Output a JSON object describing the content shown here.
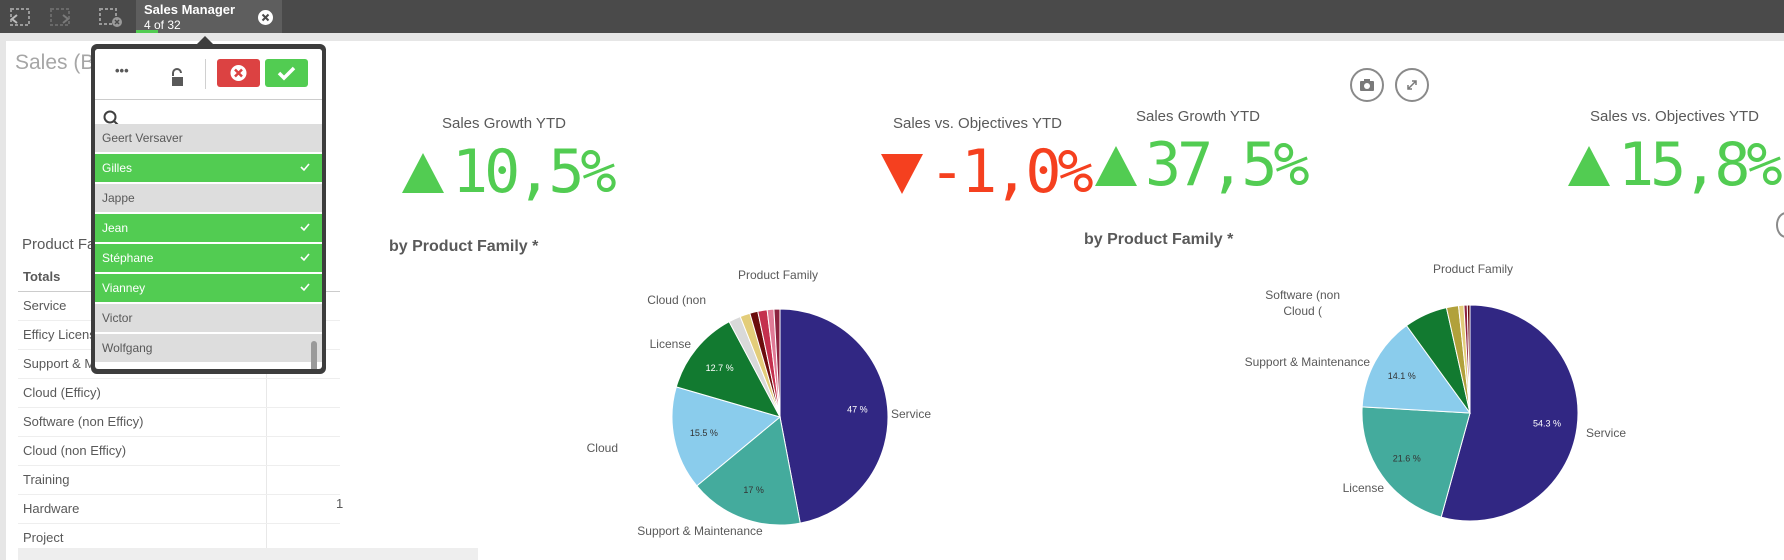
{
  "topbar": {
    "selection_tab": {
      "field": "Sales Manager",
      "count": "4 of 32"
    },
    "icons": [
      "step-back-icon",
      "step-forward-icon",
      "clear-selections-icon",
      "close-icon"
    ]
  },
  "sheet": {
    "title": "Sales (B"
  },
  "kpis": [
    {
      "title": "Sales Growth YTD",
      "value": "10,5%",
      "direction": "up",
      "color": "#52cc52"
    },
    {
      "title": "Sales vs. Objectives YTD",
      "value": "-1,0%",
      "direction": "down",
      "color": "#f5401f"
    },
    {
      "title": "Sales Growth YTD",
      "value": "37,5%",
      "direction": "up",
      "color": "#52cc52"
    },
    {
      "title": "Sales vs. Objectives YTD",
      "value": "15,8%",
      "direction": "up",
      "color": "#52cc52"
    }
  ],
  "subtitles": [
    "by Product Family *",
    "by Product Family *"
  ],
  "table": {
    "header": "Product Fa",
    "rows": [
      "Totals",
      "Service",
      "Efficy Licens",
      "Support & M",
      "Cloud (Efficy)",
      "Software (non Efficy)",
      "Cloud (non Efficy)",
      "Training",
      "Hardware",
      "Project"
    ],
    "hardware_value": "1"
  },
  "listbox": {
    "toolbar": {
      "more": "•••",
      "lock": "lock-icon",
      "cancel": "cancel-icon",
      "confirm": "check-icon"
    },
    "search_placeholder": "",
    "items": [
      {
        "label": "Geert Versaver",
        "state": "alt"
      },
      {
        "label": "Gilles",
        "state": "selected"
      },
      {
        "label": "Jappe",
        "state": "alt"
      },
      {
        "label": "Jean",
        "state": "selected"
      },
      {
        "label": "Stéphane",
        "state": "selected"
      },
      {
        "label": "Vianney",
        "state": "selected"
      },
      {
        "label": "Victor",
        "state": "alt"
      },
      {
        "label": "Wolfgang",
        "state": "alt"
      }
    ]
  },
  "chart_data": [
    {
      "type": "pie",
      "title": "Product Family",
      "slices": [
        {
          "label": "Service",
          "value": 47,
          "shown": "47 %",
          "color": "#312783"
        },
        {
          "label": "Support & Maintenance",
          "value": 17,
          "shown": "17 %",
          "color": "#44ab9d"
        },
        {
          "label": "Cloud",
          "value": 15.5,
          "shown": "15.5 %",
          "color": "#8accec"
        },
        {
          "label": "License",
          "value": 12.7,
          "shown": "12.7 %",
          "color": "#127a30"
        },
        {
          "label": "",
          "value": 1.8,
          "shown": "",
          "color": "#d9d9d9"
        },
        {
          "label": "Cloud (non",
          "value": 1.5,
          "shown": "",
          "color": "#e3cd7a"
        },
        {
          "label": "",
          "value": 1.2,
          "shown": "",
          "color": "#6b0d0d"
        },
        {
          "label": "",
          "value": 1.4,
          "shown": "",
          "color": "#c4304e"
        },
        {
          "label": "",
          "value": 1.0,
          "shown": "",
          "color": "#e07a96"
        },
        {
          "label": "",
          "value": 0.9,
          "shown": "",
          "color": "#8c2340"
        }
      ]
    },
    {
      "type": "pie",
      "title": "Product Family",
      "slices": [
        {
          "label": "Service",
          "value": 54.3,
          "shown": "54.3 %",
          "color": "#312783"
        },
        {
          "label": "License",
          "value": 21.6,
          "shown": "21.6 %",
          "color": "#44ab9d"
        },
        {
          "label": "Support & Maintenance",
          "value": 14.1,
          "shown": "14.1 %",
          "color": "#8accec"
        },
        {
          "label": "Cloud (",
          "value": 6.5,
          "shown": "",
          "color": "#127a30"
        },
        {
          "label": "Software (non",
          "value": 1.8,
          "shown": "",
          "color": "#b1a13b"
        },
        {
          "label": "",
          "value": 0.8,
          "shown": "",
          "color": "#e3cd7a"
        },
        {
          "label": "",
          "value": 0.5,
          "shown": "",
          "color": "#8c2340"
        },
        {
          "label": "",
          "value": 0.4,
          "shown": "",
          "color": "#6b0d0d"
        }
      ]
    }
  ]
}
